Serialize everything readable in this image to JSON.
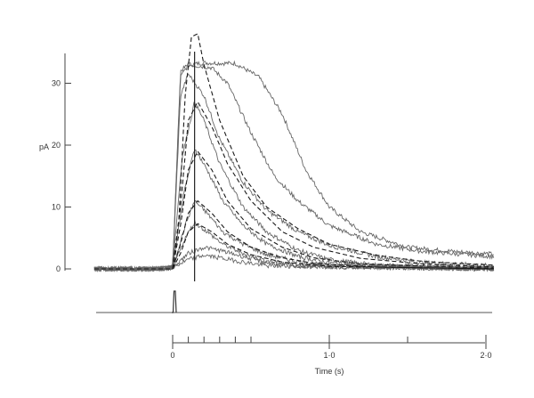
{
  "chart_data": {
    "type": "line",
    "title": "",
    "xlabel": "Time (s)",
    "ylabel": "pA",
    "xlim": [
      -0.5,
      2.05
    ],
    "ylim": [
      -1,
      36
    ],
    "grid": false,
    "x_ticks_major": [
      0,
      1.0,
      2.0
    ],
    "x_tick_labels": [
      "0",
      "1·0",
      "2·0"
    ],
    "x_ticks_minor": [
      0.1,
      0.2,
      0.3,
      0.4,
      0.5,
      1.5
    ],
    "y_ticks": [
      0,
      10,
      20,
      30
    ],
    "y_tick_labels": [
      "0",
      "10",
      "20",
      "30"
    ],
    "stimulus_marker_time": 0.14,
    "flash_time": 0.0,
    "series": [
      {
        "style": "solid",
        "values": [
          [
            -0.5,
            0
          ],
          [
            -0.1,
            0
          ],
          [
            0,
            0.2
          ],
          [
            0.05,
            32
          ],
          [
            0.1,
            33
          ],
          [
            0.2,
            33.3
          ],
          [
            0.4,
            33.2
          ],
          [
            0.55,
            31
          ],
          [
            0.7,
            25
          ],
          [
            0.85,
            16
          ],
          [
            1.0,
            10
          ],
          [
            1.2,
            6
          ],
          [
            1.5,
            3.5
          ],
          [
            1.8,
            2.8
          ],
          [
            2.05,
            2.4
          ]
        ]
      },
      {
        "style": "solid",
        "values": [
          [
            -0.5,
            0
          ],
          [
            -0.1,
            0
          ],
          [
            0,
            0.2
          ],
          [
            0.05,
            31
          ],
          [
            0.1,
            33
          ],
          [
            0.25,
            32.5
          ],
          [
            0.35,
            30
          ],
          [
            0.5,
            22
          ],
          [
            0.65,
            15
          ],
          [
            0.8,
            11
          ],
          [
            1.0,
            7
          ],
          [
            1.3,
            4
          ],
          [
            1.6,
            2.8
          ],
          [
            2.05,
            2
          ]
        ]
      },
      {
        "style": "solid",
        "values": [
          [
            -0.5,
            0
          ],
          [
            -0.1,
            0
          ],
          [
            0,
            0.2
          ],
          [
            0.05,
            28
          ],
          [
            0.1,
            31.5
          ],
          [
            0.2,
            28
          ],
          [
            0.3,
            21
          ],
          [
            0.45,
            14
          ],
          [
            0.6,
            9.5
          ],
          [
            0.8,
            6
          ],
          [
            1.0,
            3.8
          ],
          [
            1.3,
            2
          ],
          [
            1.6,
            1
          ],
          [
            2.05,
            0.5
          ]
        ]
      },
      {
        "style": "solid",
        "values": [
          [
            -0.5,
            0
          ],
          [
            -0.1,
            0
          ],
          [
            0,
            0.2
          ],
          [
            0.06,
            18
          ],
          [
            0.14,
            27
          ],
          [
            0.2,
            24
          ],
          [
            0.3,
            17
          ],
          [
            0.45,
            10
          ],
          [
            0.6,
            6
          ],
          [
            0.8,
            3
          ],
          [
            1.0,
            1.5
          ],
          [
            1.3,
            0.6
          ],
          [
            2.05,
            0.2
          ]
        ]
      },
      {
        "style": "solid",
        "values": [
          [
            -0.5,
            0
          ],
          [
            -0.1,
            0
          ],
          [
            0,
            0.2
          ],
          [
            0.07,
            12
          ],
          [
            0.14,
            19.5
          ],
          [
            0.22,
            16
          ],
          [
            0.32,
            11
          ],
          [
            0.45,
            7
          ],
          [
            0.6,
            4
          ],
          [
            0.8,
            2
          ],
          [
            1.0,
            1
          ],
          [
            1.4,
            0.3
          ],
          [
            2.05,
            0
          ]
        ]
      },
      {
        "style": "solid",
        "values": [
          [
            -0.5,
            0
          ],
          [
            -0.1,
            0
          ],
          [
            0,
            0.2
          ],
          [
            0.08,
            7
          ],
          [
            0.14,
            11
          ],
          [
            0.22,
            9
          ],
          [
            0.32,
            6
          ],
          [
            0.45,
            4
          ],
          [
            0.6,
            2.3
          ],
          [
            0.8,
            1.2
          ],
          [
            1.0,
            0.5
          ],
          [
            2.05,
            0
          ]
        ]
      },
      {
        "style": "solid",
        "values": [
          [
            -0.5,
            0
          ],
          [
            -0.1,
            0
          ],
          [
            0,
            0.2
          ],
          [
            0.08,
            5
          ],
          [
            0.14,
            7.5
          ],
          [
            0.22,
            6
          ],
          [
            0.32,
            4
          ],
          [
            0.45,
            2.5
          ],
          [
            0.6,
            1.3
          ],
          [
            0.8,
            0.6
          ],
          [
            2.05,
            0
          ]
        ]
      },
      {
        "style": "solid",
        "values": [
          [
            -0.5,
            0
          ],
          [
            -0.1,
            0
          ],
          [
            0,
            0.2
          ],
          [
            0.1,
            2.5
          ],
          [
            0.2,
            3.5
          ],
          [
            0.3,
            3
          ],
          [
            0.45,
            2
          ],
          [
            0.6,
            1
          ],
          [
            0.8,
            0.4
          ],
          [
            2.05,
            0
          ]
        ]
      },
      {
        "style": "solid",
        "values": [
          [
            -0.5,
            0
          ],
          [
            -0.1,
            0
          ],
          [
            0,
            0.2
          ],
          [
            0.1,
            1.5
          ],
          [
            0.2,
            2.2
          ],
          [
            0.3,
            1.8
          ],
          [
            0.45,
            1.1
          ],
          [
            0.6,
            0.5
          ],
          [
            2.05,
            0
          ]
        ]
      },
      {
        "style": "dashed",
        "values": [
          [
            -0.5,
            0
          ],
          [
            0,
            0
          ],
          [
            0.04,
            8
          ],
          [
            0.08,
            28
          ],
          [
            0.12,
            37.5
          ],
          [
            0.16,
            38
          ],
          [
            0.2,
            33
          ],
          [
            0.3,
            24
          ],
          [
            0.45,
            15
          ],
          [
            0.6,
            10
          ],
          [
            0.8,
            6.5
          ],
          [
            1.0,
            4
          ],
          [
            1.3,
            2.2
          ],
          [
            1.6,
            1.2
          ],
          [
            2.05,
            0.6
          ]
        ]
      },
      {
        "style": "dashed",
        "values": [
          [
            -0.5,
            0
          ],
          [
            0,
            0
          ],
          [
            0.05,
            10
          ],
          [
            0.1,
            24
          ],
          [
            0.16,
            27
          ],
          [
            0.25,
            23
          ],
          [
            0.35,
            17
          ],
          [
            0.5,
            11
          ],
          [
            0.7,
            6
          ],
          [
            0.9,
            3.5
          ],
          [
            1.2,
            1.7
          ],
          [
            1.6,
            0.8
          ],
          [
            2.05,
            0.3
          ]
        ]
      },
      {
        "style": "dashed",
        "values": [
          [
            -0.5,
            0
          ],
          [
            0,
            0
          ],
          [
            0.05,
            7
          ],
          [
            0.1,
            16
          ],
          [
            0.16,
            19
          ],
          [
            0.25,
            16
          ],
          [
            0.35,
            11
          ],
          [
            0.5,
            6.5
          ],
          [
            0.7,
            3.5
          ],
          [
            0.9,
            1.8
          ],
          [
            1.2,
            0.8
          ],
          [
            2.05,
            0.1
          ]
        ]
      },
      {
        "style": "dashed",
        "values": [
          [
            -0.5,
            0
          ],
          [
            0,
            0
          ],
          [
            0.05,
            4
          ],
          [
            0.1,
            9
          ],
          [
            0.16,
            11
          ],
          [
            0.25,
            9
          ],
          [
            0.35,
            6
          ],
          [
            0.5,
            3.5
          ],
          [
            0.7,
            1.8
          ],
          [
            0.9,
            0.9
          ],
          [
            1.3,
            0.3
          ],
          [
            2.05,
            0
          ]
        ]
      },
      {
        "style": "dashed",
        "values": [
          [
            -0.5,
            0
          ],
          [
            0,
            0
          ],
          [
            0.05,
            2.5
          ],
          [
            0.1,
            6
          ],
          [
            0.16,
            7.3
          ],
          [
            0.25,
            6
          ],
          [
            0.35,
            4
          ],
          [
            0.5,
            2.3
          ],
          [
            0.7,
            1.1
          ],
          [
            1.0,
            0.4
          ],
          [
            2.05,
            0
          ]
        ]
      }
    ]
  }
}
